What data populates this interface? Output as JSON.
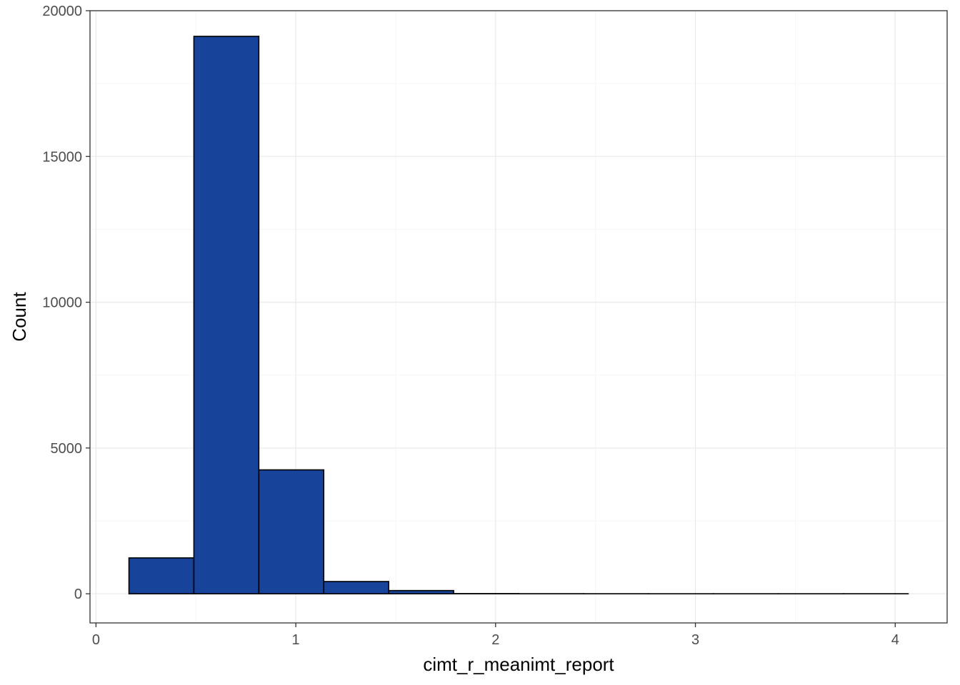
{
  "chart_data": {
    "type": "bar",
    "subtype": "histogram",
    "title": "",
    "xlabel": "cimt_r_meanimt_report",
    "ylabel": "Count",
    "bins": [
      {
        "x0": 0.165,
        "x1": 0.49,
        "count": 1230
      },
      {
        "x0": 0.49,
        "x1": 0.815,
        "count": 19120
      },
      {
        "x0": 0.815,
        "x1": 1.14,
        "count": 4250
      },
      {
        "x0": 1.14,
        "x1": 1.465,
        "count": 420
      },
      {
        "x0": 1.465,
        "x1": 1.79,
        "count": 110
      },
      {
        "x0": 1.79,
        "x1": 2.115,
        "count": 6
      },
      {
        "x0": 2.115,
        "x1": 2.44,
        "count": 2
      },
      {
        "x0": 2.44,
        "x1": 2.765,
        "count": 1
      },
      {
        "x0": 2.765,
        "x1": 3.09,
        "count": 0
      },
      {
        "x0": 3.09,
        "x1": 3.415,
        "count": 0
      },
      {
        "x0": 3.415,
        "x1": 3.74,
        "count": 0
      },
      {
        "x0": 3.74,
        "x1": 4.065,
        "count": 1
      }
    ],
    "xlim": [
      -0.03,
      4.26
    ],
    "ylim": [
      -1000,
      20000
    ],
    "xticks": [
      0,
      1,
      2,
      3,
      4
    ],
    "xtick_labels": [
      "0",
      "1",
      "2",
      "3",
      "4"
    ],
    "yticks": [
      0,
      5000,
      10000,
      15000,
      20000
    ],
    "ytick_labels": [
      "0",
      "5000",
      "10000",
      "15000",
      "20000"
    ],
    "grid": true,
    "legend": "none",
    "colors": {
      "bar_fill": "#17449A",
      "bar_stroke": "#000000",
      "grid_major": "#EBEBEB",
      "grid_minor": "#F5F5F5",
      "panel_border": "#333333"
    }
  }
}
